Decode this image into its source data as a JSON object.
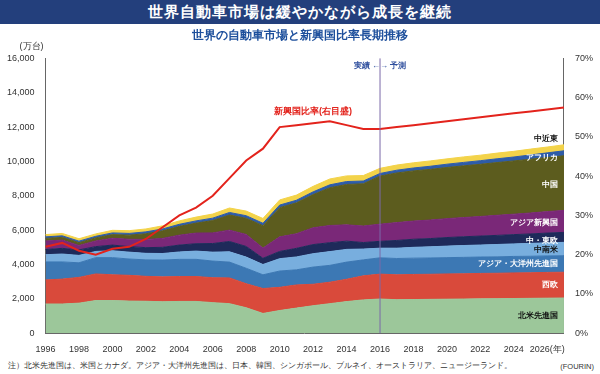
{
  "chart_data": {
    "type": "area",
    "title": "世界自動車市場は緩やかながら成長を継続",
    "subtitle": "世界の自動車市場と新興国比率長期推移",
    "ylabel": "(万台)",
    "note": "注）北米先進国は、米国とカナダ。アジア・大洋州先進国は、日本、韓国、シンガポール、ブルネイ、オーストラリア、ニュージーランド。",
    "source": "(FOURIN)",
    "stacked": true,
    "grid": false,
    "categories": [
      "1996",
      null,
      "1998",
      null,
      "2000",
      null,
      "2002",
      null,
      "2004",
      null,
      "2006",
      null,
      "2008",
      null,
      "2010",
      null,
      "2012",
      null,
      "2014",
      null,
      "2016",
      null,
      "2018",
      null,
      "2020",
      null,
      "2022",
      null,
      "2024",
      null,
      "2026(年)",
      null
    ],
    "ylim": [
      0,
      16000
    ],
    "yticks": [
      0,
      {
        "value": 2000,
        "label": "2,000"
      },
      {
        "value": 4000,
        "label": "4,000"
      },
      {
        "value": 6000,
        "label": "6,000"
      },
      {
        "value": 8000,
        "label": "8,000"
      },
      {
        "value": 10000,
        "label": "10,000"
      },
      {
        "value": 12000,
        "label": "12,000"
      },
      {
        "value": 14000,
        "label": "14,000"
      },
      {
        "value": 16000,
        "label": "16,000"
      }
    ],
    "y2lim": [
      0,
      70
    ],
    "y2ticks": [
      {
        "value": 0,
        "label": "0%"
      },
      {
        "value": 10,
        "label": "10%"
      },
      {
        "value": 20,
        "label": "20%"
      },
      {
        "value": 30,
        "label": "30%"
      },
      {
        "value": 40,
        "label": "40%"
      },
      {
        "value": 50,
        "label": "50%"
      },
      {
        "value": 60,
        "label": "60%"
      },
      {
        "value": 70,
        "label": "70%"
      }
    ],
    "annotations": [
      {
        "text": "実績 ←→ 予測",
        "x": "2016"
      }
    ],
    "series": [
      {
        "name": "北米先進国",
        "color": "#9cc79a",
        "values": [
          1700,
          1700,
          1750,
          1900,
          1900,
          1870,
          1860,
          1830,
          1850,
          1850,
          1780,
          1720,
          1480,
          1150,
          1320,
          1460,
          1600,
          1720,
          1840,
          1940,
          1990,
          1950,
          1960,
          1970,
          1980,
          1990,
          2000,
          2010,
          2020,
          2030,
          2040,
          2050
        ]
      },
      {
        "name": "西欧",
        "color": "#d94a3b",
        "values": [
          1400,
          1450,
          1500,
          1550,
          1500,
          1500,
          1450,
          1450,
          1450,
          1450,
          1450,
          1500,
          1400,
          1450,
          1350,
          1350,
          1250,
          1250,
          1300,
          1400,
          1450,
          1450,
          1460,
          1460,
          1470,
          1470,
          1480,
          1480,
          1490,
          1490,
          1500,
          1500
        ]
      },
      {
        "name": "アジア・大洋州先進国",
        "color": "#3c78b4",
        "values": [
          1050,
          1000,
          850,
          950,
          1000,
          950,
          960,
          980,
          1000,
          1000,
          970,
          920,
          900,
          800,
          950,
          880,
          1000,
          980,
          1000,
          930,
          950,
          950,
          950,
          950,
          950,
          955,
          955,
          955,
          960,
          960,
          960,
          960
        ]
      },
      {
        "name": "中南米",
        "color": "#78aede",
        "values": [
          420,
          460,
          430,
          360,
          400,
          400,
          380,
          380,
          430,
          480,
          520,
          600,
          650,
          600,
          720,
          750,
          780,
          800,
          740,
          630,
          560,
          600,
          630,
          650,
          670,
          690,
          700,
          720,
          730,
          750,
          760,
          780
        ]
      },
      {
        "name": "中・東欧",
        "color": "#1e2a5a",
        "values": [
          300,
          330,
          320,
          280,
          330,
          320,
          330,
          360,
          400,
          430,
          500,
          600,
          620,
          360,
          420,
          500,
          530,
          520,
          480,
          380,
          400,
          450,
          470,
          480,
          500,
          510,
          520,
          530,
          540,
          550,
          570,
          580
        ]
      },
      {
        "name": "アジア新興国",
        "color": "#7a2878",
        "values": [
          500,
          480,
          260,
          330,
          400,
          430,
          480,
          520,
          580,
          620,
          620,
          660,
          700,
          600,
          850,
          850,
          980,
          1000,
          950,
          960,
          1000,
          1040,
          1060,
          1080,
          1100,
          1120,
          1140,
          1170,
          1190,
          1220,
          1250,
          1280
        ]
      },
      {
        "name": "中国",
        "color": "#5c5c1e",
        "values": [
          150,
          160,
          160,
          180,
          210,
          240,
          330,
          440,
          510,
          580,
          720,
          880,
          940,
          1300,
          1700,
          1800,
          1930,
          2200,
          2350,
          2460,
          2800,
          2890,
          2920,
          2950,
          2980,
          3010,
          3040,
          3070,
          3100,
          3130,
          3150,
          3180
        ]
      },
      {
        "name": "アフリカ",
        "color": "#2e5ca8",
        "values": [
          90,
          90,
          90,
          90,
          100,
          100,
          110,
          110,
          120,
          130,
          140,
          150,
          150,
          140,
          150,
          150,
          160,
          170,
          170,
          160,
          150,
          160,
          170,
          180,
          190,
          200,
          210,
          220,
          230,
          250,
          270,
          290
        ]
      },
      {
        "name": "中近東",
        "color": "#f3d34a",
        "values": [
          130,
          140,
          140,
          140,
          150,
          160,
          170,
          180,
          200,
          220,
          240,
          260,
          270,
          280,
          300,
          300,
          320,
          340,
          330,
          320,
          300,
          300,
          300,
          310,
          310,
          320,
          320,
          330,
          330,
          340,
          340,
          350
        ]
      },
      {
        "name": "新興国比率(右目盛)",
        "type": "line",
        "axis": "y2",
        "color": "#e3231c",
        "values": [
          22,
          23,
          21,
          20,
          21.5,
          22,
          24,
          27,
          30,
          32,
          35,
          39.5,
          44,
          47,
          52.5,
          53,
          53.5,
          54,
          53,
          52,
          52,
          52.5,
          53,
          53.5,
          54,
          54.5,
          55,
          55.5,
          56,
          56.5,
          57,
          57.5
        ]
      }
    ]
  }
}
